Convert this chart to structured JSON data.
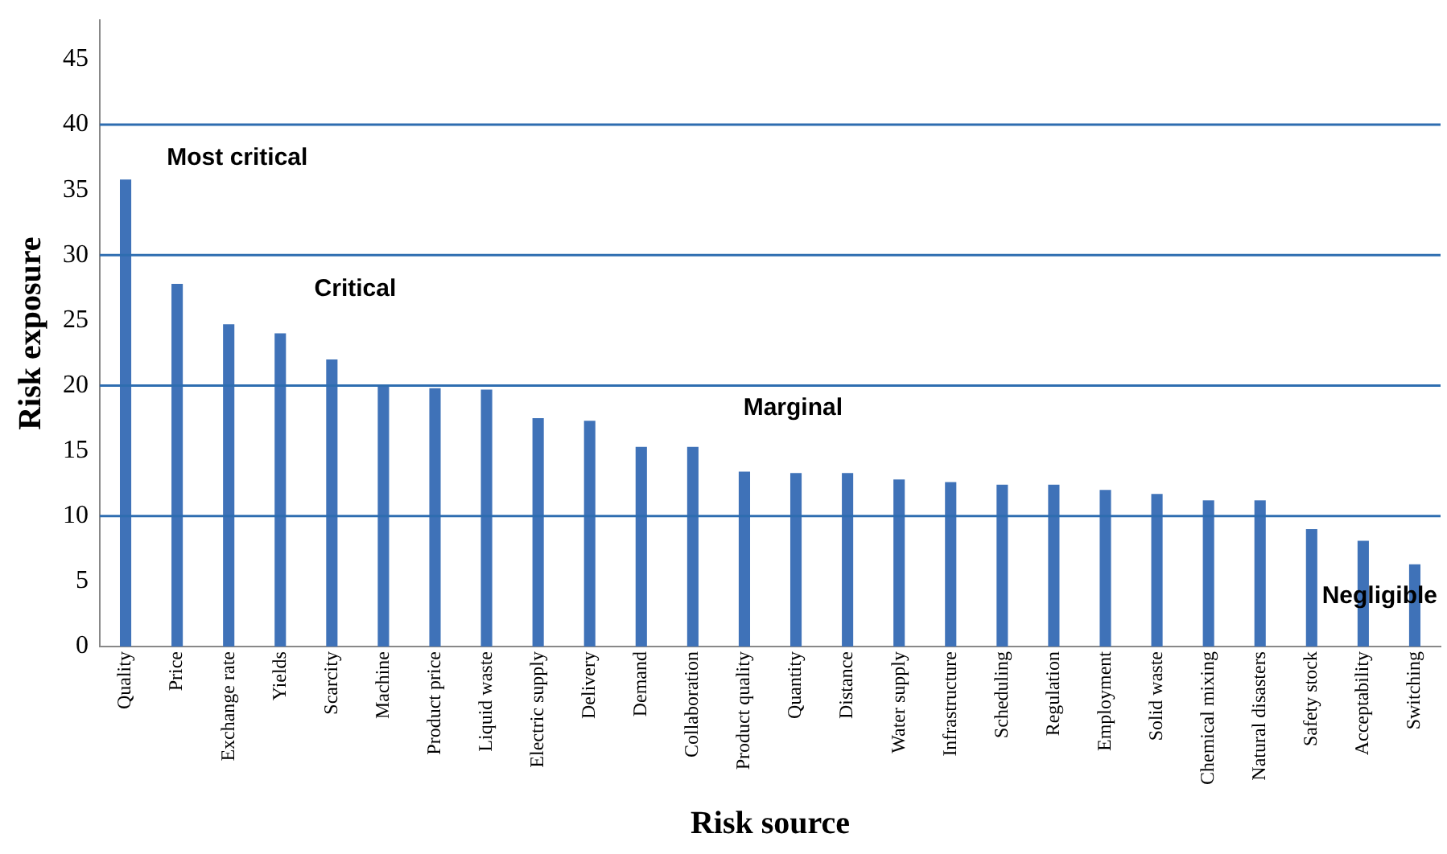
{
  "chart_data": {
    "type": "bar",
    "xlabel": "Risk source",
    "ylabel": "Risk exposure",
    "categories": [
      "Quality",
      "Price",
      "Exchange rate",
      "Yields",
      "Scarcity",
      "Machine",
      "Product price",
      "Liquid waste",
      "Electric supply",
      "Delivery",
      "Demand",
      "Collaboration",
      "Product quality",
      "Quantity",
      "Distance",
      "Water supply",
      "Infrastructure",
      "Scheduling",
      "Regulation",
      "Employment",
      "Solid waste",
      "Chemical mixing",
      "Natural disasters",
      "Safety stock",
      "Acceptability",
      "Switching"
    ],
    "values": [
      35.8,
      27.8,
      24.7,
      24.0,
      22.0,
      20.1,
      19.8,
      19.7,
      17.5,
      17.3,
      15.3,
      15.3,
      13.4,
      13.3,
      13.3,
      12.8,
      12.6,
      12.4,
      12.4,
      12.0,
      11.7,
      11.2,
      11.2,
      9.0,
      8.1,
      6.3
    ],
    "color": "#3f72b8",
    "ylim": [
      0,
      48
    ],
    "yticks": [
      0,
      5,
      10,
      15,
      20,
      25,
      30,
      35,
      40,
      45
    ],
    "grid": false,
    "legend": false,
    "ref_lines": [
      {
        "axis": "y",
        "value": 40,
        "color": "#2e6db0"
      },
      {
        "axis": "y",
        "value": 30,
        "color": "#2e6db0"
      },
      {
        "axis": "y",
        "value": 20,
        "color": "#2e6db0"
      },
      {
        "axis": "y",
        "value": 10,
        "color": "#2e6db0"
      }
    ],
    "annotations": [
      "Most critical",
      "Critical",
      "Marginal",
      "Negligible"
    ]
  }
}
